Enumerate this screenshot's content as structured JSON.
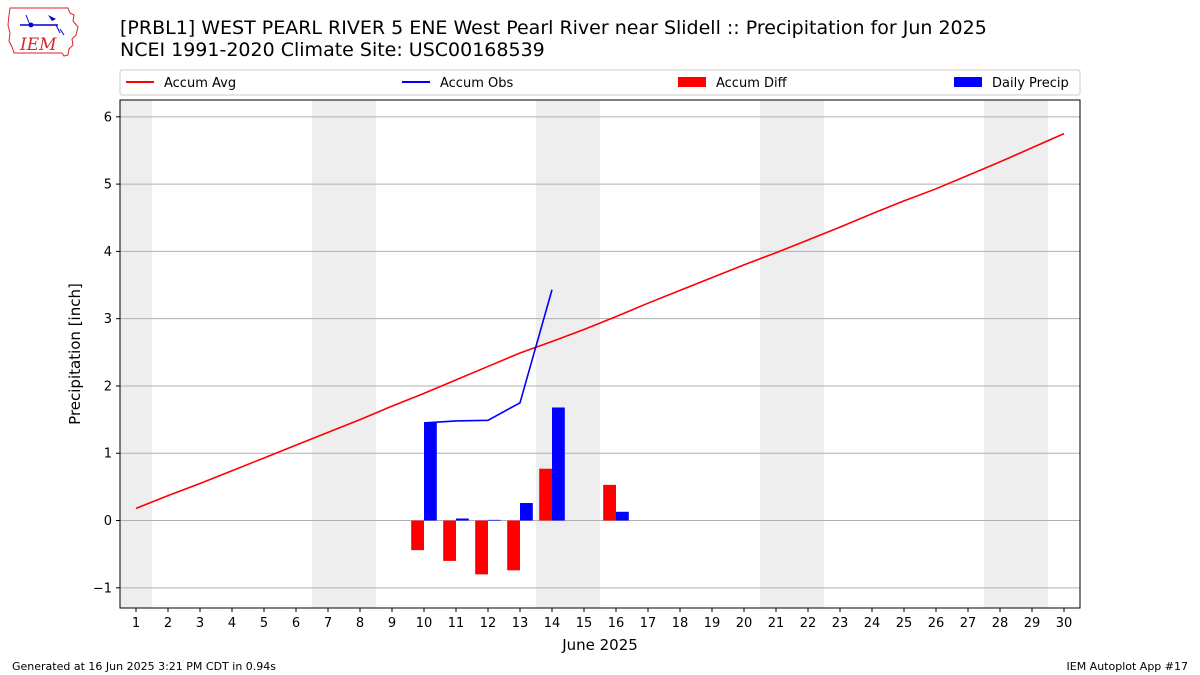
{
  "header": {
    "title_line1": "[PRBL1] WEST PEARL RIVER 5 ENE West Pearl River near Slidell :: Precipitation for Jun 2025",
    "title_line2": "NCEI 1991-2020 Climate Site: USC00168539"
  },
  "logo": {
    "text": "IEM",
    "color": "#d62728"
  },
  "footer": {
    "left": "Generated at 16 Jun 2025 3:21 PM CDT in 0.94s",
    "right": "IEM Autoplot App #17"
  },
  "chart_data": {
    "type": "bar",
    "xlabel": "June 2025",
    "ylabel": "Precipitation [inch]",
    "xlim": [
      0.5,
      30.5
    ],
    "ylim": [
      -1.3,
      6.25
    ],
    "x_ticks": [
      1,
      2,
      3,
      4,
      5,
      6,
      7,
      8,
      9,
      10,
      11,
      12,
      13,
      14,
      15,
      16,
      17,
      18,
      19,
      20,
      21,
      22,
      23,
      24,
      25,
      26,
      27,
      28,
      29,
      30
    ],
    "y_ticks": [
      -1,
      0,
      1,
      2,
      3,
      4,
      5,
      6
    ],
    "grid": "horizontal",
    "weekend_shading": [
      [
        0.5,
        1.5
      ],
      [
        6.5,
        8.5
      ],
      [
        13.5,
        15.5
      ],
      [
        20.5,
        22.5
      ],
      [
        27.5,
        29.5
      ]
    ],
    "shading_color": "#eeeeee",
    "legend_position": "top",
    "series": [
      {
        "name": "Accum Avg",
        "kind": "line",
        "color": "#ff0000",
        "x": [
          1,
          2,
          3,
          4,
          5,
          6,
          7,
          8,
          9,
          10,
          11,
          12,
          13,
          14,
          15,
          16,
          17,
          18,
          19,
          20,
          21,
          22,
          23,
          24,
          25,
          26,
          27,
          28,
          29,
          30
        ],
        "values": [
          0.18,
          0.37,
          0.55,
          0.74,
          0.93,
          1.12,
          1.31,
          1.5,
          1.7,
          1.89,
          2.09,
          2.29,
          2.49,
          2.66,
          2.84,
          3.03,
          3.23,
          3.42,
          3.61,
          3.8,
          3.98,
          4.17,
          4.36,
          4.56,
          4.75,
          4.93,
          5.13,
          5.33,
          5.54,
          5.75
        ]
      },
      {
        "name": "Accum Obs",
        "kind": "line",
        "color": "#0000ff",
        "x": [
          10,
          11,
          12,
          13,
          14
        ],
        "values": [
          1.45,
          1.48,
          1.49,
          1.75,
          3.43
        ]
      },
      {
        "name": "Accum Diff",
        "kind": "bar",
        "color": "#ff0000",
        "x": [
          10,
          11,
          12,
          13,
          14,
          16
        ],
        "values": [
          -0.44,
          -0.6,
          -0.8,
          -0.74,
          0.77,
          0.53
        ]
      },
      {
        "name": "Daily Precip",
        "kind": "bar",
        "color": "#0000ff",
        "x": [
          10,
          11,
          12,
          13,
          14,
          16
        ],
        "values": [
          1.45,
          0.03,
          0.01,
          0.26,
          1.68,
          0.13
        ]
      }
    ]
  }
}
